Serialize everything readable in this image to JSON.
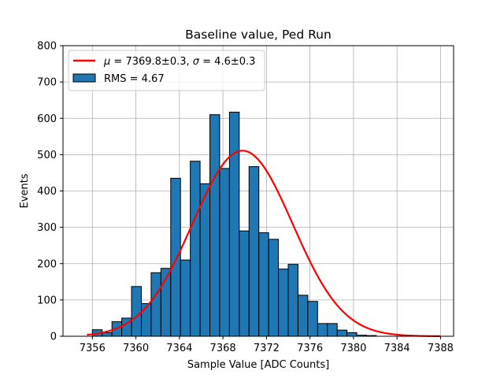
{
  "chart_data": {
    "type": "bar",
    "title": "Baseline value, Ped Run",
    "xlabel": "Sample Value [ADC Counts]",
    "ylabel": "Events",
    "xlim": [
      7353.3,
      7389.2
    ],
    "ylim": [
      0,
      800
    ],
    "xticks": [
      7356,
      7360,
      7364,
      7368,
      7372,
      7376,
      7380,
      7384,
      7388
    ],
    "yticks": [
      0,
      100,
      200,
      300,
      400,
      500,
      600,
      700,
      800
    ],
    "grid": true,
    "legend_position": "top-left",
    "bin_width": 0.9,
    "histogram": {
      "name": "RMS = 4.67",
      "color": "#1f77b4",
      "bin_starts": [
        7356.0,
        7356.9,
        7357.8,
        7358.7,
        7359.6,
        7360.5,
        7361.4,
        7362.3,
        7363.2,
        7364.1,
        7365.0,
        7365.9,
        7366.8,
        7367.7,
        7368.6,
        7369.5,
        7370.4,
        7371.3,
        7372.2,
        7373.1,
        7374.0,
        7374.9,
        7375.8,
        7376.7,
        7377.6,
        7378.5,
        7379.4,
        7380.3,
        7381.2
      ],
      "counts": [
        18,
        10,
        40,
        50,
        137,
        90,
        175,
        187,
        435,
        210,
        482,
        420,
        610,
        462,
        617,
        290,
        467,
        285,
        267,
        185,
        198,
        113,
        96,
        35,
        35,
        17,
        10,
        3,
        2
      ]
    },
    "fit": {
      "name_math": "μ = 7369.8±0.3, σ = 4.6±0.3",
      "legend_parts": [
        {
          "text": "μ",
          "italic": true
        },
        {
          "text": " = 7369.8±0.3, ",
          "italic": false
        },
        {
          "text": "σ",
          "italic": true
        },
        {
          "text": " = 4.6±0.3",
          "italic": false
        }
      ],
      "color": "#ff0000",
      "mu": 7369.8,
      "sigma": 4.6,
      "amplitude": 511,
      "x_range": [
        7355.5,
        7388.0
      ]
    }
  }
}
